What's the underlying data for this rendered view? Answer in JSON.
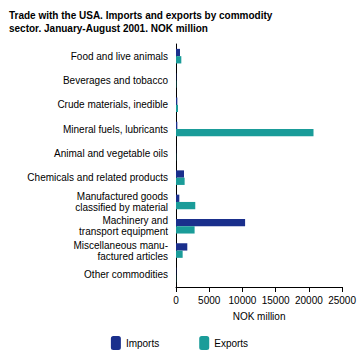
{
  "chart_data": {
    "type": "bar",
    "orientation": "horizontal",
    "title": "Trade with the USA. Imports and exports by commodity\nsector. January-August 2001. NOK million",
    "x_label": "NOK million",
    "categories": [
      "Food and live animals",
      "Beverages and tobacco",
      "Crude materials, inedible",
      "Mineral fuels, lubricants",
      "Animal and vegetable oils",
      "Chemicals and related products",
      "Manufactured goods\nclassified by material",
      "Machinery and\ntransport equipment",
      "Miscellaneous manu-\nfactured articles",
      "Other commodities"
    ],
    "series": [
      {
        "name": "Imports",
        "color": "#1a2f8c",
        "values": [
          600,
          50,
          200,
          200,
          20,
          1200,
          500,
          10400,
          1700,
          50
        ]
      },
      {
        "name": "Exports",
        "color": "#1a9c99",
        "values": [
          800,
          50,
          300,
          20700,
          30,
          1300,
          2900,
          2800,
          1000,
          30
        ]
      }
    ],
    "xlim": [
      0,
      25000
    ],
    "xticks": [
      0,
      5000,
      10000,
      15000,
      20000,
      25000
    ],
    "grid": false,
    "legend": "bottom"
  }
}
